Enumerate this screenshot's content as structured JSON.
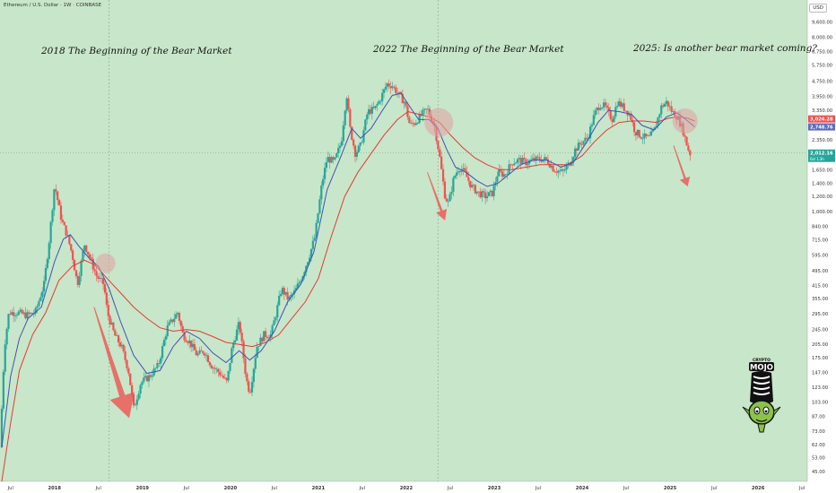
{
  "header": {
    "symbol_line": "Ethereum / U.S. Dollar · 1W · COINBASE",
    "currency_button": "USD"
  },
  "annotations": [
    {
      "id": "a2018",
      "text": "2018 The Beginning of the Bear Market"
    },
    {
      "id": "a2022",
      "text": "2022 The Beginning of the Bear Market"
    },
    {
      "id": "a2025",
      "text": "2025: Is another bear market coming?"
    }
  ],
  "colors": {
    "background": "#c8e6c9",
    "up_candle": "#26a69a",
    "down_candle": "#ef5350",
    "ma_fast": "#3f51b5",
    "ma_slow": "#e53935",
    "arrow": "#ef5350",
    "highlight": "#e0a0a0"
  },
  "chart_data": {
    "type": "candlestick",
    "scale": "log",
    "ylim": [
      40,
      12500
    ],
    "xlim": [
      2017.38,
      2026.56
    ],
    "y_ticks": [
      "11,800.00",
      "9,600.00",
      "8,000.00",
      "6,750.00",
      "5,750.00",
      "4,750.00",
      "3,950.00",
      "3,350.00",
      "2,350.00",
      "1,650.00",
      "1,400.00",
      "1,200.00",
      "1,000.00",
      "840.00",
      "715.00",
      "595.00",
      "495.00",
      "415.00",
      "355.00",
      "295.00",
      "245.00",
      "205.00",
      "175.00",
      "147.00",
      "123.00",
      "103.00",
      "87.00",
      "73.00",
      "62.00",
      "53.00",
      "45.00"
    ],
    "x_ticks": [
      {
        "label": "Jul",
        "t": 2017.5
      },
      {
        "label": "2018",
        "t": 2018.0
      },
      {
        "label": "Jul",
        "t": 2018.5
      },
      {
        "label": "2019",
        "t": 2019.0
      },
      {
        "label": "Jul",
        "t": 2019.5
      },
      {
        "label": "2020",
        "t": 2020.0
      },
      {
        "label": "Jul",
        "t": 2020.5
      },
      {
        "label": "2021",
        "t": 2021.0
      },
      {
        "label": "Jul",
        "t": 2021.5
      },
      {
        "label": "2022",
        "t": 2022.0
      },
      {
        "label": "Jul",
        "t": 2022.5
      },
      {
        "label": "2023",
        "t": 2023.0
      },
      {
        "label": "Jul",
        "t": 2023.5
      },
      {
        "label": "2024",
        "t": 2024.0
      },
      {
        "label": "Jul",
        "t": 2024.5
      },
      {
        "label": "2025",
        "t": 2025.0
      },
      {
        "label": "Jul",
        "t": 2025.5
      },
      {
        "label": "2026",
        "t": 2026.0
      },
      {
        "label": "Jul",
        "t": 2026.5
      }
    ],
    "price_labels": [
      {
        "value": 3024.28,
        "text": "3,024.28",
        "color": "#ef5350"
      },
      {
        "value": 2748.76,
        "text": "2,748.76",
        "color": "#5c6bc0"
      },
      {
        "value": 2012.16,
        "text": "2,012.16",
        "color": "#26a69a"
      }
    ],
    "price_sublabel": "6d 13h",
    "candle_points": [
      [
        2017.4,
        60
      ],
      [
        2017.45,
        200
      ],
      [
        2017.5,
        300
      ],
      [
        2017.6,
        300
      ],
      [
        2017.7,
        290
      ],
      [
        2017.8,
        300
      ],
      [
        2017.9,
        420
      ],
      [
        2017.96,
        720
      ],
      [
        2018.02,
        1380
      ],
      [
        2018.1,
        900
      ],
      [
        2018.16,
        760
      ],
      [
        2018.22,
        600
      ],
      [
        2018.28,
        420
      ],
      [
        2018.36,
        680
      ],
      [
        2018.42,
        580
      ],
      [
        2018.5,
        460
      ],
      [
        2018.58,
        420
      ],
      [
        2018.62,
        300
      ],
      [
        2018.7,
        230
      ],
      [
        2018.78,
        200
      ],
      [
        2018.86,
        150
      ],
      [
        2018.92,
        95
      ],
      [
        2019.0,
        130
      ],
      [
        2019.1,
        140
      ],
      [
        2019.2,
        160
      ],
      [
        2019.3,
        250
      ],
      [
        2019.42,
        300
      ],
      [
        2019.48,
        230
      ],
      [
        2019.56,
        210
      ],
      [
        2019.64,
        180
      ],
      [
        2019.72,
        190
      ],
      [
        2019.8,
        160
      ],
      [
        2019.9,
        145
      ],
      [
        2019.98,
        130
      ],
      [
        2020.04,
        200
      ],
      [
        2020.12,
        265
      ],
      [
        2020.2,
        135
      ],
      [
        2020.24,
        115
      ],
      [
        2020.32,
        200
      ],
      [
        2020.4,
        230
      ],
      [
        2020.48,
        230
      ],
      [
        2020.54,
        300
      ],
      [
        2020.6,
        400
      ],
      [
        2020.68,
        350
      ],
      [
        2020.76,
        390
      ],
      [
        2020.84,
        470
      ],
      [
        2020.92,
        600
      ],
      [
        2020.98,
        740
      ],
      [
        2021.06,
        1400
      ],
      [
        2021.12,
        1900
      ],
      [
        2021.2,
        1800
      ],
      [
        2021.28,
        2300
      ],
      [
        2021.34,
        4100
      ],
      [
        2021.38,
        2700
      ],
      [
        2021.44,
        2000
      ],
      [
        2021.5,
        2200
      ],
      [
        2021.58,
        3300
      ],
      [
        2021.66,
        3400
      ],
      [
        2021.72,
        3800
      ],
      [
        2021.8,
        4600
      ],
      [
        2021.86,
        4500
      ],
      [
        2021.94,
        4000
      ],
      [
        2022.0,
        3700
      ],
      [
        2022.06,
        2800
      ],
      [
        2022.12,
        2900
      ],
      [
        2022.2,
        3200
      ],
      [
        2022.26,
        3400
      ],
      [
        2022.34,
        2800
      ],
      [
        2022.4,
        1900
      ],
      [
        2022.46,
        1200
      ],
      [
        2022.5,
        1100
      ],
      [
        2022.56,
        1500
      ],
      [
        2022.62,
        1700
      ],
      [
        2022.68,
        1600
      ],
      [
        2022.76,
        1350
      ],
      [
        2022.84,
        1250
      ],
      [
        2022.92,
        1200
      ],
      [
        2023.0,
        1250
      ],
      [
        2023.06,
        1600
      ],
      [
        2023.14,
        1550
      ],
      [
        2023.22,
        1800
      ],
      [
        2023.3,
        1850
      ],
      [
        2023.38,
        1800
      ],
      [
        2023.46,
        1850
      ],
      [
        2023.54,
        1880
      ],
      [
        2023.62,
        1850
      ],
      [
        2023.7,
        1650
      ],
      [
        2023.8,
        1600
      ],
      [
        2023.88,
        1800
      ],
      [
        2023.94,
        2100
      ],
      [
        2024.02,
        2300
      ],
      [
        2024.08,
        2400
      ],
      [
        2024.16,
        3200
      ],
      [
        2024.22,
        3600
      ],
      [
        2024.28,
        3500
      ],
      [
        2024.36,
        3000
      ],
      [
        2024.42,
        3700
      ],
      [
        2024.48,
        3500
      ],
      [
        2024.56,
        3200
      ],
      [
        2024.62,
        2600
      ],
      [
        2024.7,
        2450
      ],
      [
        2024.78,
        2400
      ],
      [
        2024.84,
        2650
      ],
      [
        2024.92,
        3500
      ],
      [
        2024.98,
        3700
      ],
      [
        2025.04,
        3300
      ],
      [
        2025.1,
        3100
      ],
      [
        2025.16,
        2700
      ],
      [
        2025.2,
        2300
      ],
      [
        2025.24,
        2000
      ]
    ],
    "ma_fast_points": [
      [
        2017.4,
        60
      ],
      [
        2017.5,
        140
      ],
      [
        2017.6,
        220
      ],
      [
        2017.7,
        280
      ],
      [
        2017.85,
        320
      ],
      [
        2018.0,
        550
      ],
      [
        2018.1,
        720
      ],
      [
        2018.18,
        760
      ],
      [
        2018.28,
        660
      ],
      [
        2018.4,
        570
      ],
      [
        2018.5,
        520
      ],
      [
        2018.62,
        400
      ],
      [
        2018.75,
        270
      ],
      [
        2018.9,
        180
      ],
      [
        2019.05,
        145
      ],
      [
        2019.2,
        150
      ],
      [
        2019.35,
        200
      ],
      [
        2019.5,
        240
      ],
      [
        2019.65,
        220
      ],
      [
        2019.8,
        185
      ],
      [
        2019.95,
        165
      ],
      [
        2020.1,
        190
      ],
      [
        2020.22,
        170
      ],
      [
        2020.35,
        190
      ],
      [
        2020.5,
        240
      ],
      [
        2020.65,
        340
      ],
      [
        2020.8,
        420
      ],
      [
        2020.95,
        620
      ],
      [
        2021.1,
        1300
      ],
      [
        2021.25,
        1900
      ],
      [
        2021.38,
        2700
      ],
      [
        2021.48,
        2400
      ],
      [
        2021.6,
        2700
      ],
      [
        2021.72,
        3300
      ],
      [
        2021.84,
        4000
      ],
      [
        2021.94,
        4100
      ],
      [
        2022.04,
        3500
      ],
      [
        2022.14,
        3000
      ],
      [
        2022.26,
        3000
      ],
      [
        2022.36,
        2700
      ],
      [
        2022.46,
        2100
      ],
      [
        2022.56,
        1700
      ],
      [
        2022.68,
        1600
      ],
      [
        2022.8,
        1450
      ],
      [
        2022.92,
        1350
      ],
      [
        2023.04,
        1400
      ],
      [
        2023.16,
        1550
      ],
      [
        2023.3,
        1750
      ],
      [
        2023.45,
        1850
      ],
      [
        2023.6,
        1850
      ],
      [
        2023.76,
        1700
      ],
      [
        2023.9,
        1800
      ],
      [
        2024.04,
        2250
      ],
      [
        2024.18,
        2900
      ],
      [
        2024.3,
        3350
      ],
      [
        2024.42,
        3300
      ],
      [
        2024.56,
        3200
      ],
      [
        2024.68,
        2800
      ],
      [
        2024.82,
        2650
      ],
      [
        2024.96,
        3100
      ],
      [
        2025.08,
        3250
      ],
      [
        2025.18,
        3000
      ],
      [
        2025.28,
        2750
      ]
    ],
    "ma_slow_points": [
      [
        2017.4,
        40
      ],
      [
        2017.5,
        80
      ],
      [
        2017.6,
        150
      ],
      [
        2017.75,
        230
      ],
      [
        2017.9,
        300
      ],
      [
        2018.05,
        440
      ],
      [
        2018.2,
        520
      ],
      [
        2018.34,
        560
      ],
      [
        2018.46,
        530
      ],
      [
        2018.58,
        460
      ],
      [
        2018.75,
        380
      ],
      [
        2018.9,
        320
      ],
      [
        2019.05,
        280
      ],
      [
        2019.2,
        250
      ],
      [
        2019.35,
        240
      ],
      [
        2019.5,
        245
      ],
      [
        2019.65,
        240
      ],
      [
        2019.8,
        225
      ],
      [
        2019.95,
        210
      ],
      [
        2020.1,
        205
      ],
      [
        2020.25,
        200
      ],
      [
        2020.4,
        210
      ],
      [
        2020.55,
        230
      ],
      [
        2020.7,
        280
      ],
      [
        2020.85,
        340
      ],
      [
        2021.0,
        450
      ],
      [
        2021.15,
        750
      ],
      [
        2021.3,
        1200
      ],
      [
        2021.45,
        1600
      ],
      [
        2021.6,
        2000
      ],
      [
        2021.75,
        2500
      ],
      [
        2021.9,
        3000
      ],
      [
        2022.02,
        3300
      ],
      [
        2022.14,
        3200
      ],
      [
        2022.26,
        3100
      ],
      [
        2022.38,
        2900
      ],
      [
        2022.5,
        2500
      ],
      [
        2022.64,
        2150
      ],
      [
        2022.78,
        1900
      ],
      [
        2022.92,
        1750
      ],
      [
        2023.06,
        1650
      ],
      [
        2023.2,
        1650
      ],
      [
        2023.36,
        1700
      ],
      [
        2023.52,
        1750
      ],
      [
        2023.68,
        1750
      ],
      [
        2023.84,
        1750
      ],
      [
        2024.0,
        1950
      ],
      [
        2024.14,
        2300
      ],
      [
        2024.28,
        2650
      ],
      [
        2024.42,
        2900
      ],
      [
        2024.56,
        2950
      ],
      [
        2024.7,
        2950
      ],
      [
        2024.84,
        2900
      ],
      [
        2024.98,
        3050
      ],
      [
        2025.1,
        3100
      ],
      [
        2025.2,
        3050
      ],
      [
        2025.28,
        2950
      ]
    ],
    "arrows": [
      {
        "from": [
          2018.45,
          320
        ],
        "to": [
          2018.85,
          85
        ]
      },
      {
        "from": [
          2022.24,
          1600
        ],
        "to": [
          2022.44,
          900
        ]
      },
      {
        "from": [
          2025.04,
          2200
        ],
        "to": [
          2025.2,
          1350
        ]
      }
    ],
    "highlights": [
      {
        "t": 2018.58,
        "price": 540,
        "r": 11
      },
      {
        "t": 2022.37,
        "price": 2900,
        "r": 16
      },
      {
        "t": 2025.17,
        "price": 2950,
        "r": 14
      }
    ],
    "vlines": [
      2018.62,
      2022.36
    ],
    "hline": 2012.16
  },
  "logo": {
    "text_top": "CRYPTO",
    "text_main": "MOJO"
  }
}
